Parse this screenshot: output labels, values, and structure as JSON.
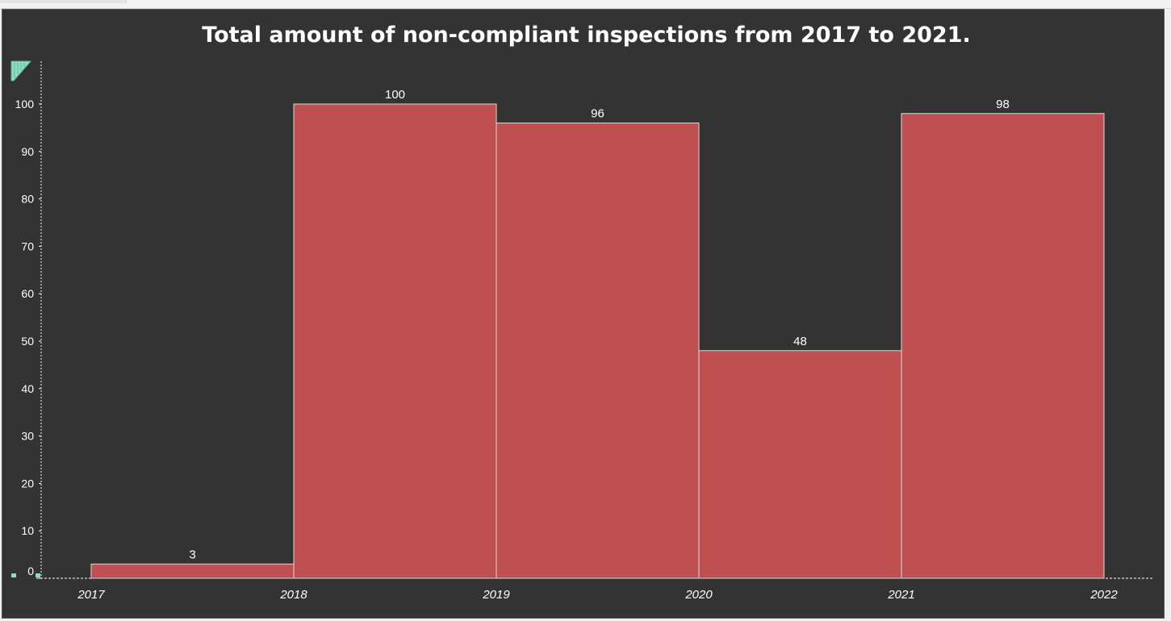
{
  "chart_data": {
    "type": "bar",
    "title": "Total amount of non-compliant inspections from 2017 to 2021.",
    "xlabel": "",
    "ylabel": "",
    "x_ticks": [
      "2017",
      "2018",
      "2019",
      "2020",
      "2021",
      "2022"
    ],
    "bins": [
      {
        "start": 2017,
        "end": 2018,
        "value": 3
      },
      {
        "start": 2018,
        "end": 2019,
        "value": 100
      },
      {
        "start": 2019,
        "end": 2020,
        "value": 96
      },
      {
        "start": 2020,
        "end": 2021,
        "value": 48
      },
      {
        "start": 2021,
        "end": 2022,
        "value": 98
      }
    ],
    "xlim": [
      2017,
      2022
    ],
    "ylim": [
      0,
      100
    ],
    "y_ticks": [
      0,
      10,
      20,
      30,
      40,
      50,
      60,
      70,
      80,
      90,
      100
    ],
    "bar_color": "#bf5052",
    "bar_edge_color": "#d8d8d8",
    "background_color": "#333333",
    "grid": false,
    "legend": "none"
  }
}
